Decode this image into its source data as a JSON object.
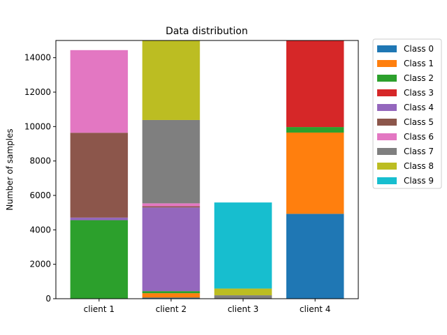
{
  "chart_data": {
    "type": "bar",
    "stacked": true,
    "title": "Data distribution",
    "xlabel": "",
    "ylabel": "Number of samples",
    "ylim": [
      0,
      15000
    ],
    "yticks": [
      0,
      2000,
      4000,
      6000,
      8000,
      10000,
      12000,
      14000
    ],
    "categories": [
      "client 1",
      "client 2",
      "client 3",
      "client 4"
    ],
    "legend_position": "outside-right",
    "grid": false,
    "series": [
      {
        "name": "Class 0",
        "color": "#1f77b4",
        "values": [
          0,
          60,
          0,
          4930
        ]
      },
      {
        "name": "Class 1",
        "color": "#ff7f0e",
        "values": [
          0,
          260,
          0,
          4720
        ]
      },
      {
        "name": "Class 2",
        "color": "#2ca02c",
        "values": [
          4560,
          120,
          0,
          320
        ]
      },
      {
        "name": "Class 3",
        "color": "#d62728",
        "values": [
          0,
          0,
          0,
          5030
        ]
      },
      {
        "name": "Class 4",
        "color": "#9467bd",
        "values": [
          150,
          4860,
          20,
          0
        ]
      },
      {
        "name": "Class 5",
        "color": "#8c564b",
        "values": [
          4930,
          70,
          0,
          0
        ]
      },
      {
        "name": "Class 6",
        "color": "#e377c2",
        "values": [
          4800,
          170,
          0,
          0
        ]
      },
      {
        "name": "Class 7",
        "color": "#7f7f7f",
        "values": [
          0,
          4840,
          180,
          0
        ]
      },
      {
        "name": "Class 8",
        "color": "#bcbd22",
        "values": [
          0,
          4620,
          390,
          0
        ]
      },
      {
        "name": "Class 9",
        "color": "#17becf",
        "values": [
          0,
          0,
          5000,
          0
        ]
      }
    ]
  }
}
